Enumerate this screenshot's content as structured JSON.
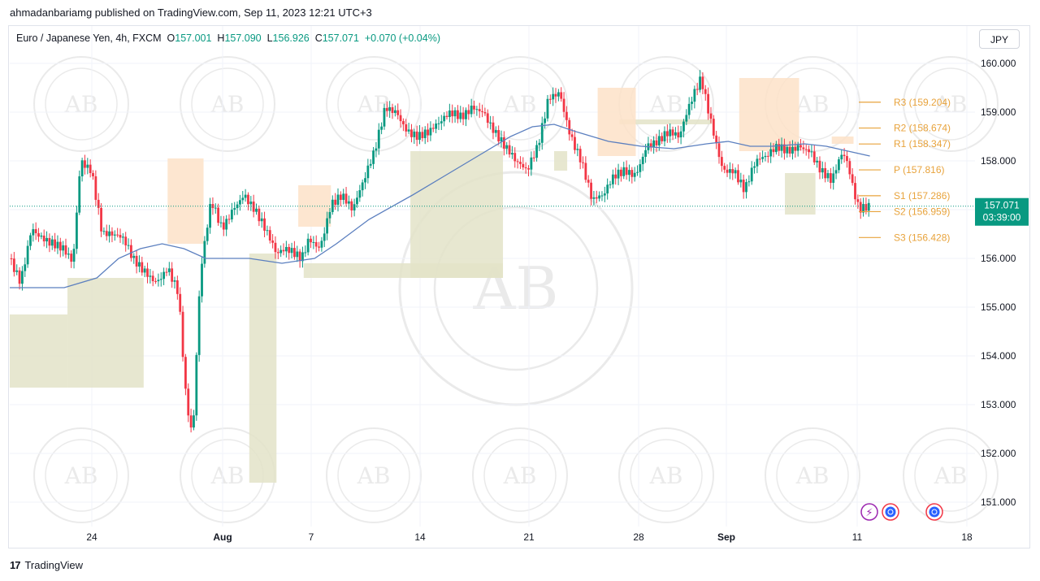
{
  "header": {
    "published": "ahmadanbariamg published on TradingView.com, Sep 11, 2023 12:21 UTC+3"
  },
  "legend": {
    "symbol": "Euro / Japanese Yen, 4h, FXCM",
    "o_label": "O",
    "o": "157.001",
    "h_label": "H",
    "h": "157.090",
    "l_label": "L",
    "l": "156.926",
    "c_label": "C",
    "c": "157.071",
    "change": "+0.070 (+0.04%)"
  },
  "currency_button": "JPY",
  "price_tag": {
    "price": "157.071",
    "countdown": "03:39:00"
  },
  "footer": {
    "logo": "TradingView"
  },
  "colors": {
    "up": "#089981",
    "down": "#f23645",
    "ma": "#5b7fbf",
    "pivot": "#e8a33c",
    "demand_zone": "#e3e3c8",
    "supply_zone": "#fde2c8"
  },
  "icons": [
    "lightning-icon",
    "event-icon",
    "event-icon"
  ],
  "chart_data": {
    "type": "candlestick",
    "ylim": [
      150.6,
      160.3
    ],
    "y_ticks": [
      "160.000",
      "159.000",
      "158.000",
      "157.000",
      "156.000",
      "155.000",
      "154.000",
      "153.000",
      "152.000",
      "151.000"
    ],
    "x_ticks": [
      "24",
      "Aug",
      "7",
      "14",
      "21",
      "28",
      "Sep",
      "11",
      "18"
    ],
    "pivots": [
      {
        "label": "R3 (159.204)",
        "value": 159.204
      },
      {
        "label": "R2 (158.674)",
        "value": 158.674
      },
      {
        "label": "R1 (158.347)",
        "value": 158.347
      },
      {
        "label": "P (157.816)",
        "value": 157.816
      },
      {
        "label": "S1 (157.286)",
        "value": 157.286
      },
      {
        "label": "S2 (156.959)",
        "value": 156.959
      },
      {
        "label": "S3 (156.428)",
        "value": 156.428
      }
    ],
    "last_price": 157.071,
    "demand_zones": [
      {
        "x0": 0.0,
        "x1": 5.3,
        "y0": 153.35,
        "y1": 154.85
      },
      {
        "x0": 5.3,
        "x1": 12.3,
        "y0": 153.35,
        "y1": 155.6
      },
      {
        "x0": 22.0,
        "x1": 24.5,
        "y0": 151.4,
        "y1": 156.1
      },
      {
        "x0": 27.0,
        "x1": 45.3,
        "y0": 155.6,
        "y1": 155.9
      },
      {
        "x0": 36.8,
        "x1": 45.3,
        "y0": 155.6,
        "y1": 158.2
      },
      {
        "x0": 50.0,
        "x1": 51.2,
        "y0": 157.8,
        "y1": 158.2
      },
      {
        "x0": 56.0,
        "x1": 64.5,
        "y0": 158.85,
        "y1": 158.75
      },
      {
        "x0": 71.2,
        "x1": 74.0,
        "y0": 156.9,
        "y1": 157.75
      }
    ],
    "supply_zones": [
      {
        "x0": 14.5,
        "x1": 17.8,
        "y0": 156.3,
        "y1": 158.05
      },
      {
        "x0": 26.5,
        "x1": 29.5,
        "y0": 156.65,
        "y1": 157.5
      },
      {
        "x0": 54.0,
        "x1": 57.5,
        "y0": 158.1,
        "y1": 159.5
      },
      {
        "x0": 67.0,
        "x1": 72.5,
        "y0": 158.2,
        "y1": 159.7
      },
      {
        "x0": 75.5,
        "x1": 77.5,
        "y0": 158.35,
        "y1": 158.5
      }
    ],
    "waypoints": [
      [
        0,
        156.0
      ],
      [
        1,
        155.5
      ],
      [
        2,
        156.6
      ],
      [
        3,
        156.4
      ],
      [
        4,
        156.3
      ],
      [
        5,
        156.2
      ],
      [
        5.8,
        155.9
      ],
      [
        6.5,
        158.0
      ],
      [
        7.5,
        157.8
      ],
      [
        8.5,
        156.5
      ],
      [
        9.5,
        156.5
      ],
      [
        10.5,
        156.4
      ],
      [
        11.3,
        156.0
      ],
      [
        12.5,
        155.7
      ],
      [
        13.5,
        155.5
      ],
      [
        14.5,
        155.8
      ],
      [
        15.5,
        155.3
      ],
      [
        16.2,
        153.1
      ],
      [
        16.8,
        152.3
      ],
      [
        17.5,
        155.7
      ],
      [
        18.5,
        157.2
      ],
      [
        19.5,
        156.6
      ],
      [
        20.5,
        157.0
      ],
      [
        21.5,
        157.3
      ],
      [
        22.5,
        157.0
      ],
      [
        23.5,
        156.6
      ],
      [
        24.5,
        156.1
      ],
      [
        25.5,
        156.2
      ],
      [
        26.8,
        156.0
      ],
      [
        27.5,
        156.4
      ],
      [
        28.5,
        156.2
      ],
      [
        29.5,
        157.1
      ],
      [
        30.5,
        157.3
      ],
      [
        31.5,
        157.0
      ],
      [
        32.5,
        157.6
      ],
      [
        33.5,
        158.2
      ],
      [
        34.5,
        159.1
      ],
      [
        35.5,
        159.0
      ],
      [
        36.5,
        158.6
      ],
      [
        37.5,
        158.5
      ],
      [
        38.5,
        158.6
      ],
      [
        39.5,
        158.8
      ],
      [
        40.5,
        159.0
      ],
      [
        41.5,
        158.9
      ],
      [
        42.5,
        159.1
      ],
      [
        43.5,
        159.0
      ],
      [
        44.5,
        158.6
      ],
      [
        45.5,
        158.3
      ],
      [
        46.5,
        158.0
      ],
      [
        47.5,
        157.8
      ],
      [
        48.5,
        158.3
      ],
      [
        49.5,
        159.3
      ],
      [
        50.5,
        159.4
      ],
      [
        51.5,
        158.5
      ],
      [
        52.5,
        158.0
      ],
      [
        53.5,
        157.2
      ],
      [
        54.5,
        157.3
      ],
      [
        55.5,
        157.7
      ],
      [
        56.5,
        157.8
      ],
      [
        57.5,
        157.7
      ],
      [
        58.5,
        158.3
      ],
      [
        59.5,
        158.4
      ],
      [
        60.5,
        158.6
      ],
      [
        61.5,
        158.5
      ],
      [
        62.5,
        159.2
      ],
      [
        63.5,
        159.7
      ],
      [
        64.5,
        158.7
      ],
      [
        65.5,
        157.8
      ],
      [
        66.5,
        157.8
      ],
      [
        67.5,
        157.4
      ],
      [
        68.5,
        158.0
      ],
      [
        69.5,
        158.1
      ],
      [
        70.5,
        158.3
      ],
      [
        71.5,
        158.2
      ],
      [
        72.5,
        158.3
      ],
      [
        73.5,
        158.2
      ],
      [
        74.5,
        157.8
      ],
      [
        75.5,
        157.6
      ],
      [
        76.5,
        158.2
      ],
      [
        77.0,
        157.9
      ],
      [
        77.5,
        157.4
      ],
      [
        78.0,
        157.0
      ],
      [
        78.8,
        157.07
      ]
    ],
    "ma_waypoints": [
      [
        0,
        155.4
      ],
      [
        5,
        155.4
      ],
      [
        8,
        155.6
      ],
      [
        10,
        156.0
      ],
      [
        12,
        156.2
      ],
      [
        14,
        156.3
      ],
      [
        16,
        156.2
      ],
      [
        18,
        156.0
      ],
      [
        22,
        156.0
      ],
      [
        25,
        155.9
      ],
      [
        28,
        156.0
      ],
      [
        30,
        156.3
      ],
      [
        33,
        156.8
      ],
      [
        37,
        157.3
      ],
      [
        40,
        157.7
      ],
      [
        43,
        158.1
      ],
      [
        46,
        158.5
      ],
      [
        48,
        158.7
      ],
      [
        50,
        158.75
      ],
      [
        52,
        158.6
      ],
      [
        55,
        158.4
      ],
      [
        58,
        158.3
      ],
      [
        61,
        158.25
      ],
      [
        64,
        158.35
      ],
      [
        66,
        158.4
      ],
      [
        68,
        158.3
      ],
      [
        70,
        158.3
      ],
      [
        73,
        158.35
      ],
      [
        75,
        158.3
      ],
      [
        77,
        158.2
      ],
      [
        79,
        158.1
      ]
    ]
  }
}
